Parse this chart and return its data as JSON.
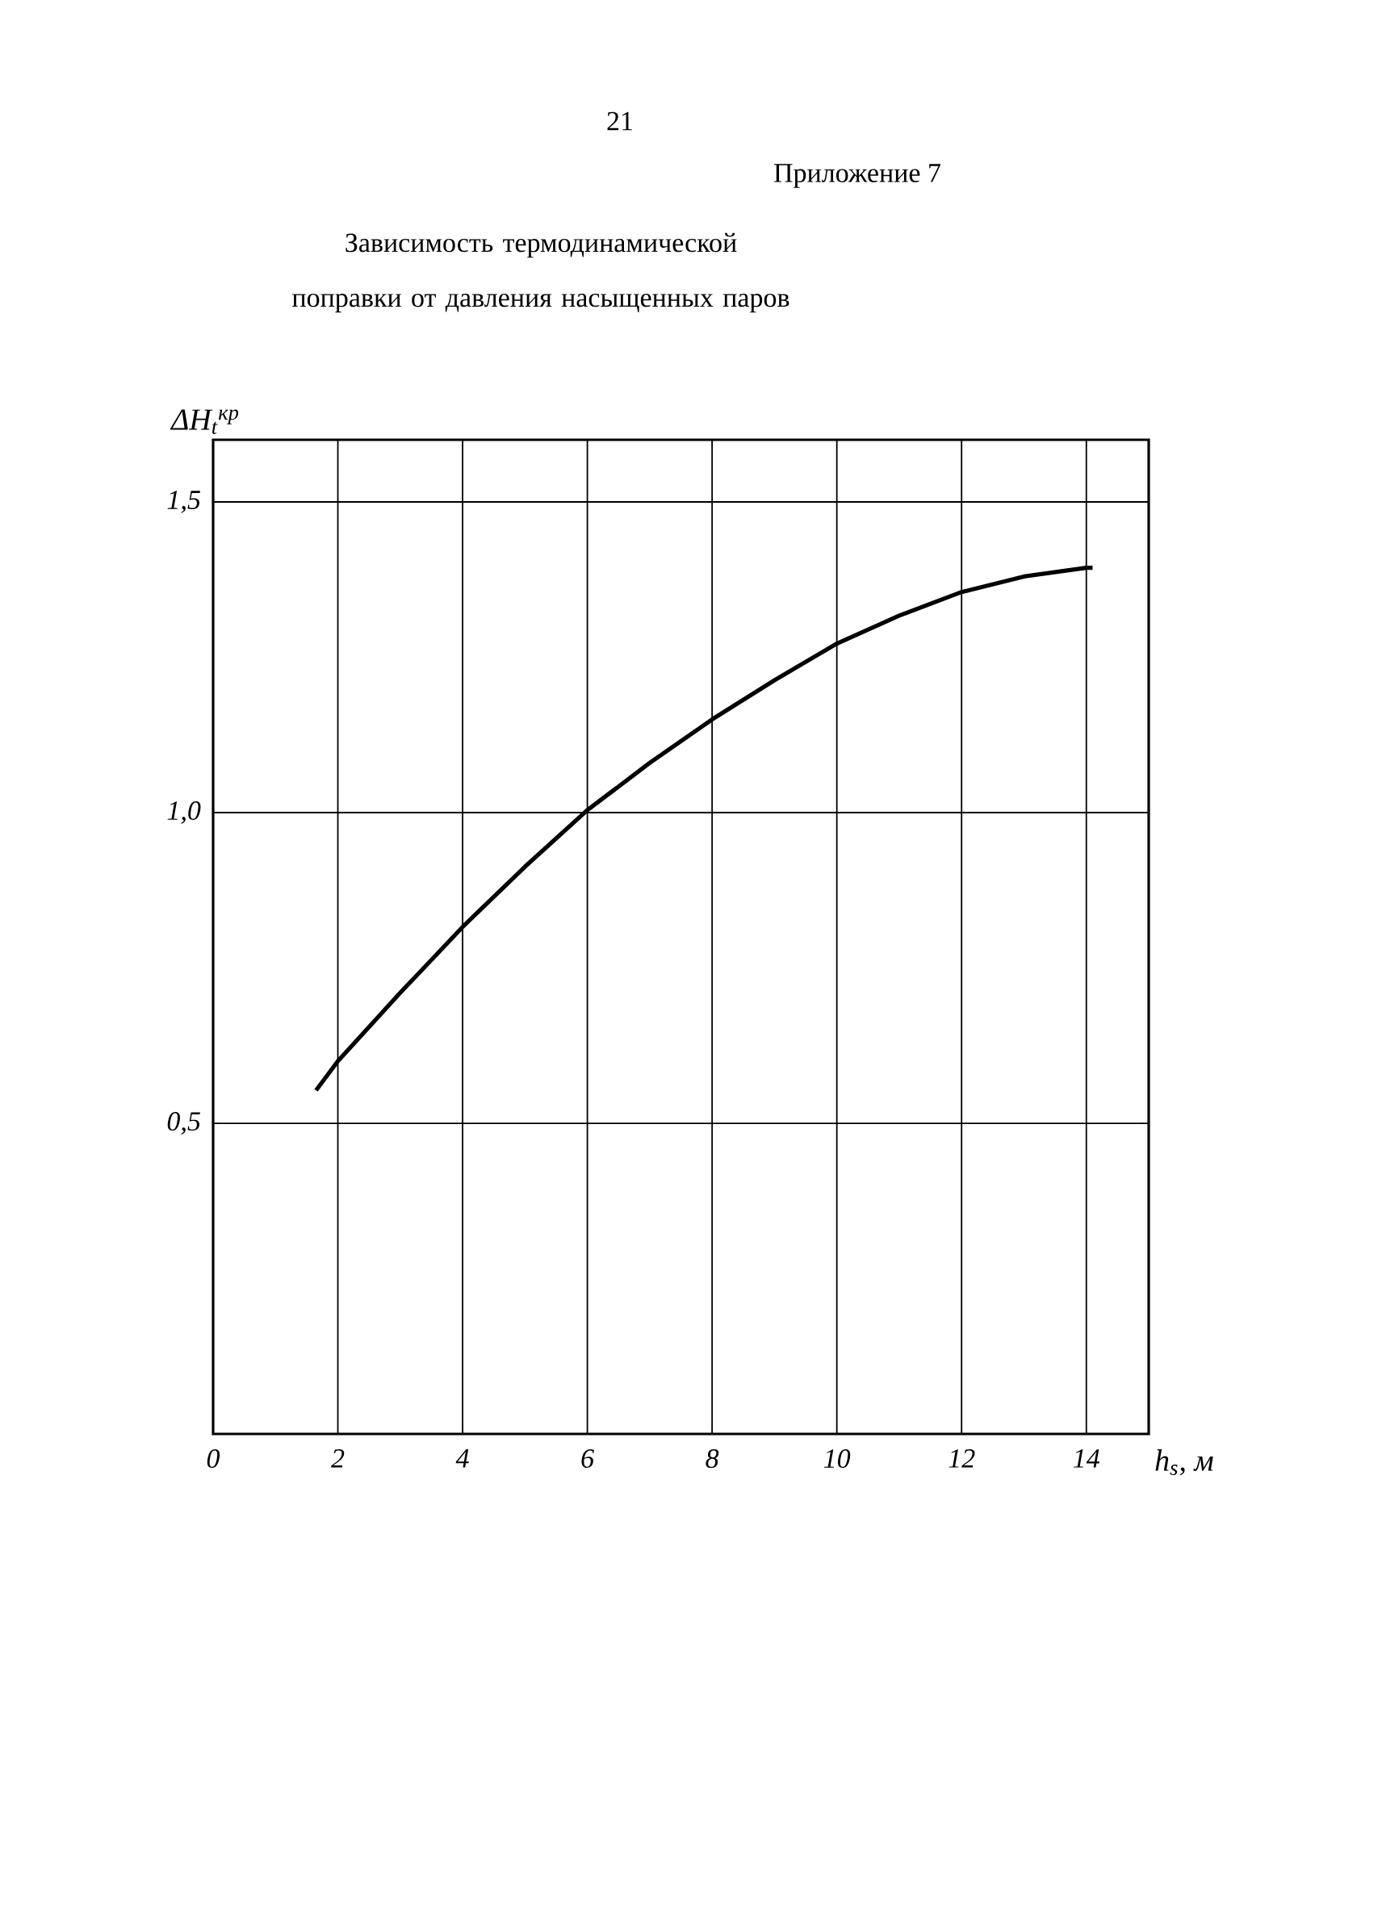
{
  "chart_data": {
    "type": "line",
    "title": "Зависимость термодинамической поправки от давления насыщенных паров",
    "annotations": [
      "21",
      "Приложение 7"
    ],
    "xlabel": "h$_{s}$, м",
    "ylabel": "ΔH$_{t}$$^{кр}$",
    "x": [
      1.65,
      2,
      3,
      4,
      5,
      6,
      7,
      8,
      9,
      10,
      11,
      12,
      13,
      14,
      14.1
    ],
    "series": [
      {
        "color": "#000000",
        "values": [
          0.553,
          0.6,
          0.71,
          0.816,
          0.913,
          1.004,
          1.08,
          1.15,
          1.213,
          1.272,
          1.317,
          1.355,
          1.38,
          1.394,
          1.394
        ]
      }
    ],
    "xlim": [
      0,
      15
    ],
    "ylim": [
      0,
      1.6
    ],
    "xticks": [
      0,
      2,
      4,
      6,
      8,
      10,
      12,
      14
    ],
    "yticks": [
      {
        "value": 0.5,
        "label": "0,5"
      },
      {
        "value": 1.0,
        "label": "1,0"
      },
      {
        "value": 1.5,
        "label": "1,5"
      }
    ],
    "grid": true
  }
}
